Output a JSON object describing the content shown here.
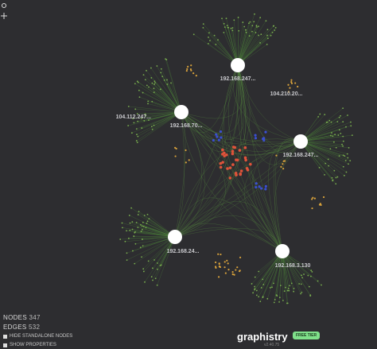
{
  "graph": {
    "nodes": [
      {
        "label": "192.168.247..."
      },
      {
        "label": "104.210.20..."
      },
      {
        "label": "104.112.247..."
      },
      {
        "label": "192.168.70..."
      },
      {
        "label": "192.168.247..."
      },
      {
        "label": "192.168.24..."
      },
      {
        "label": "192.168.3.130"
      }
    ]
  },
  "stats": {
    "nodes_label": "NODES",
    "nodes": 347,
    "edges_label": "EDGES",
    "edges": 532
  },
  "options": [
    "HIDE STANDALONE NODES",
    "SHOW PROPERTIES"
  ],
  "brand": {
    "name": "graphistry",
    "tier": "FREE TIER",
    "version": "v2.40.75"
  }
}
